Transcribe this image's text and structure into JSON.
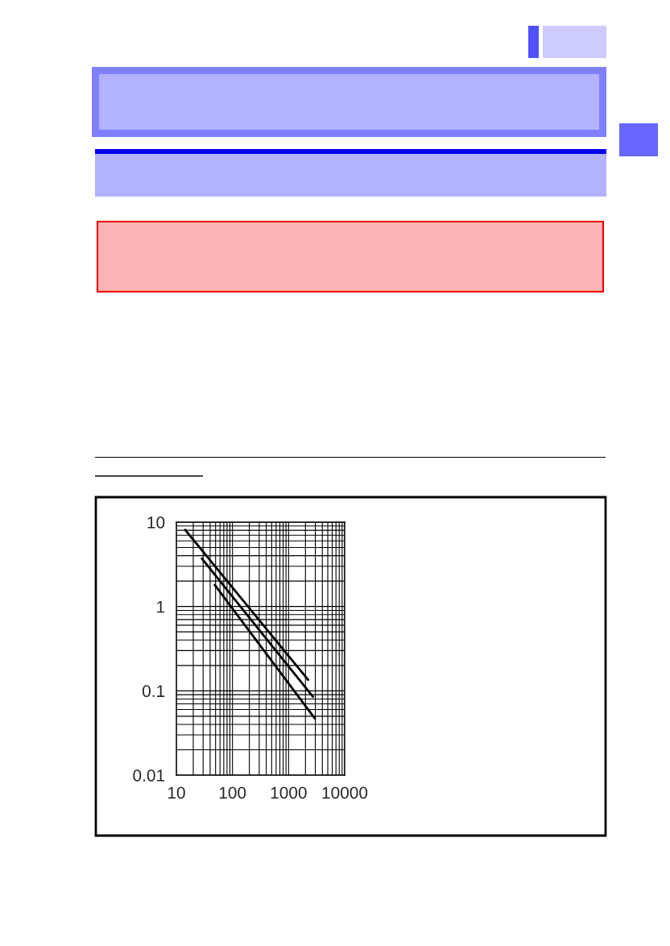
{
  "chart_data": {
    "type": "line",
    "series": [
      {
        "color": "#000000",
        "x": [
          14.4,
          2230
        ],
        "values": [
          8.1,
          0.135
        ]
      },
      {
        "color": "#000000",
        "x": [
          28.5,
          2720
        ],
        "values": [
          3.7,
          0.085
        ]
      },
      {
        "color": "#000000",
        "x": [
          48.4,
          2940
        ],
        "values": [
          1.8,
          0.047
        ]
      }
    ],
    "log": "xy",
    "xlim": [
      10,
      10000
    ],
    "ylim": [
      0.01,
      10
    ],
    "xticks": [
      10,
      100,
      1000,
      10000
    ],
    "yticks": [
      0.01,
      0.1,
      1,
      10
    ],
    "grid": true,
    "legend": false,
    "marker": "none",
    "line_style": "solid"
  }
}
